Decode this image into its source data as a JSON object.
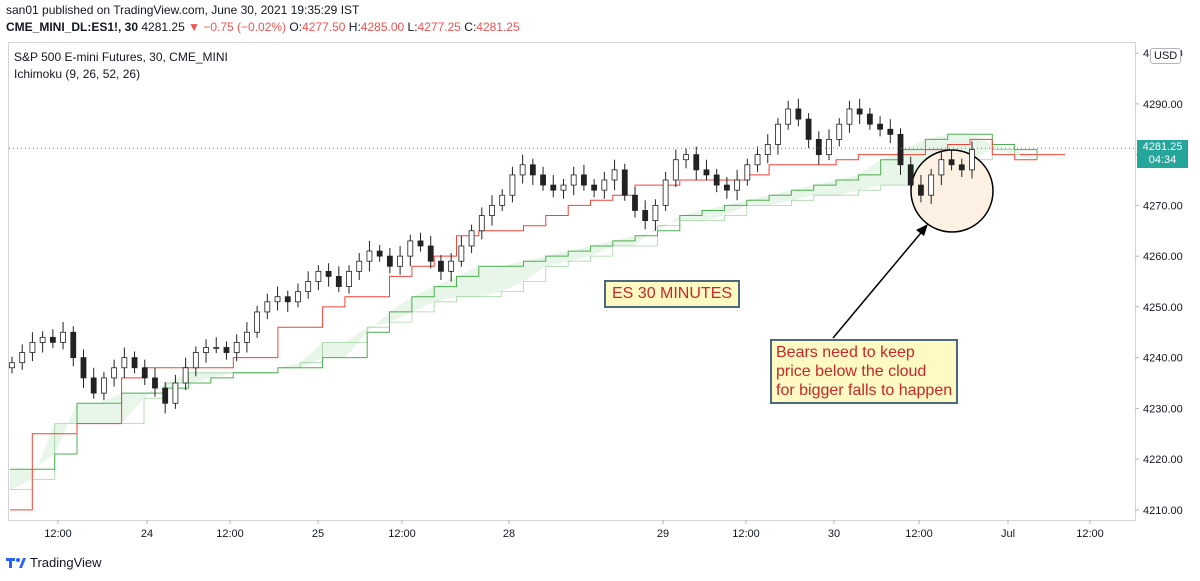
{
  "header": {
    "line1": "san01 published on TradingView.com, June 30, 2021 19:35:29 IST",
    "symbol": "CME_MINI_DL:ES1!, 30",
    "last": "4281.25",
    "change": "▼ −0.75 (−0.02%)",
    "o_label": "O:",
    "o_value": "4277.50",
    "h_label": "H:",
    "h_value": "4285.00",
    "l_label": "L:",
    "l_value": "4277.25",
    "c_label": "C:",
    "c_value": "4281.25"
  },
  "legend": {
    "title": "S&P 500 E-mini Futures, 30, CME_MINI",
    "indicator": "Ichimoku (9, 26, 52, 26)"
  },
  "currency": "USD",
  "price_tag": {
    "price": "4281.25",
    "countdown": "04:34"
  },
  "annotations": {
    "timeframe": "ES 30 MINUTES",
    "note": "Bears need to keep\nprice below the cloud\nfor bigger falls to happen"
  },
  "footer": {
    "brand": "TradingView"
  },
  "colors": {
    "up": "#26a69a",
    "down": "#ef5350",
    "candle_body_up": "#26a69a",
    "cloud_green": "#4caf50",
    "cloud_fill": "#e8f5e9",
    "base_line": "#f44336",
    "circle_fill": "#fdf1e3",
    "arrow": "#000000",
    "price_line": "#26a69a"
  },
  "chart_data": {
    "type": "candlestick",
    "ylim": [
      4208,
      4302
    ],
    "yticks": [
      "4210.00",
      "4220.00",
      "4230.00",
      "4240.00",
      "4250.00",
      "4260.00",
      "4270.00",
      "4280.00",
      "4290.00",
      "4300.00"
    ],
    "xticks": [
      "12:00",
      "24",
      "12:00",
      "25",
      "12:00",
      "28",
      "29",
      "12:00",
      "30",
      "12:00",
      "Jul",
      "12:00"
    ],
    "last_price": 4281.25,
    "close_path": [
      4239,
      4241,
      4243,
      4244,
      4243,
      4245,
      4240,
      4236,
      4233,
      4236,
      4238,
      4240,
      4238,
      4236,
      4234,
      4231,
      4235,
      4238,
      4241,
      4242,
      4242,
      4241,
      4243,
      4245,
      4249,
      4251,
      4252,
      4251,
      4253,
      4255,
      4257,
      4256,
      4254,
      4257,
      4259,
      4261,
      4260,
      4258,
      4260,
      4263,
      4262,
      4259,
      4257,
      4259,
      4262,
      4265,
      4268,
      4270,
      4272,
      4276,
      4278,
      4276,
      4274,
      4273,
      4274,
      4276,
      4274,
      4273,
      4275,
      4277,
      4272,
      4269,
      4267,
      4270,
      4275,
      4279,
      4280,
      4277,
      4276,
      4274,
      4273,
      4275,
      4278,
      4280,
      4282,
      4286,
      4289,
      4287,
      4283,
      4280,
      4283,
      4286,
      4289,
      4288,
      4286,
      4285,
      4284,
      4278,
      4274,
      4272,
      4276,
      4279,
      4278,
      4277,
      4281
    ],
    "cloud_upper": [
      4218,
      4218,
      4221,
      4231,
      4231,
      4233,
      4233,
      4234,
      4235,
      4236,
      4237,
      4237,
      4238,
      4238,
      4240,
      4240,
      4245,
      4249,
      4252,
      4254,
      4256,
      4258,
      4258,
      4259,
      4260,
      4261,
      4262,
      4263,
      4264,
      4265,
      4268,
      4269,
      4270,
      4271,
      4272,
      4273,
      4274,
      4275,
      4276,
      4279,
      4281,
      4283,
      4284,
      4284,
      4282,
      4281,
      4279
    ],
    "cloud_lower": [
      4214,
      4216,
      4227,
      4227,
      4227,
      4227,
      4232,
      4235,
      4237,
      4237,
      4237,
      4237,
      4238,
      4239,
      4243,
      4243,
      4246,
      4247,
      4249,
      4251,
      4252,
      4252,
      4253,
      4255,
      4258,
      4259,
      4260,
      4262,
      4262,
      4266,
      4267,
      4267,
      4268,
      4270,
      4270,
      4271,
      4272,
      4272,
      4273,
      4274,
      4274,
      4275,
      4278,
      4279,
      4281,
      4280,
      4279
    ],
    "base_line": [
      4210,
      4225,
      4225,
      4227,
      4227,
      4236,
      4238,
      4238,
      4238,
      4238,
      4240,
      4240,
      4246,
      4246,
      4250,
      4252,
      4252,
      4256,
      4258,
      4260,
      4264,
      4265,
      4265,
      4266,
      4268,
      4270,
      4271,
      4272,
      4274,
      4274,
      4275,
      4275,
      4275,
      4276,
      4278,
      4278,
      4278,
      4279,
      4280,
      4280,
      4280,
      4281,
      4282,
      4283,
      4280,
      4279,
      4279
    ],
    "base_line_forward": [
      4280,
      4280,
      4280,
      4280,
      4280,
      4280
    ]
  }
}
